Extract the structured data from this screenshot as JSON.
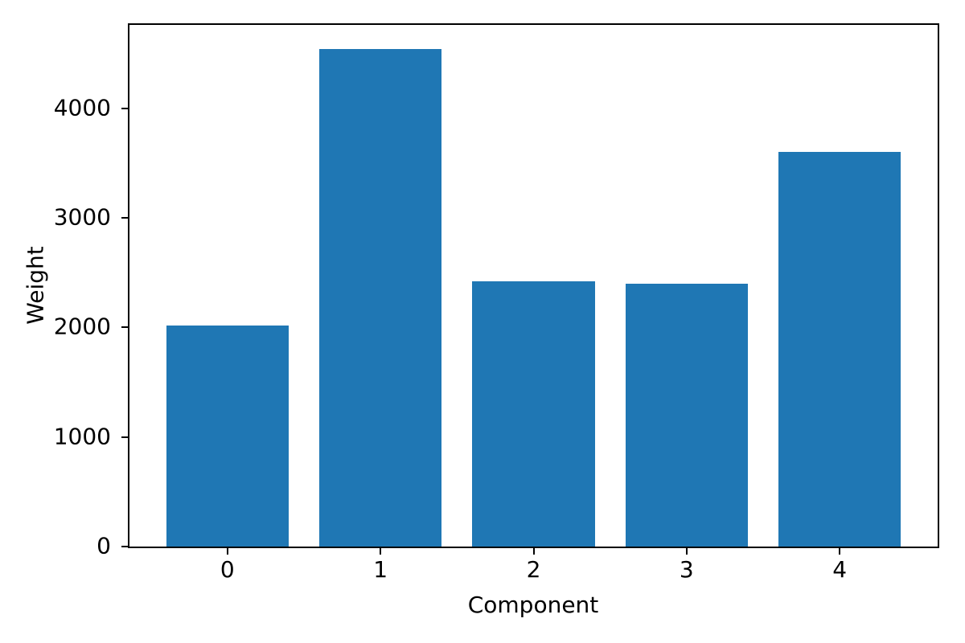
{
  "chart_data": {
    "type": "bar",
    "title": "",
    "xlabel": "Component",
    "ylabel": "Weight",
    "categories": [
      "0",
      "1",
      "2",
      "3",
      "4"
    ],
    "values": [
      2020,
      4540,
      2420,
      2400,
      3600
    ],
    "yticks": [
      0,
      1000,
      2000,
      3000,
      4000
    ],
    "ylim": [
      0,
      4760
    ],
    "xlim": [
      -0.64,
      4.64
    ],
    "bar_width_fraction": 0.8,
    "grid": false,
    "legend": null,
    "bar_color": "#1f77b4"
  },
  "colors": {
    "background": "#ffffff",
    "axis": "#000000",
    "text": "#000000"
  }
}
